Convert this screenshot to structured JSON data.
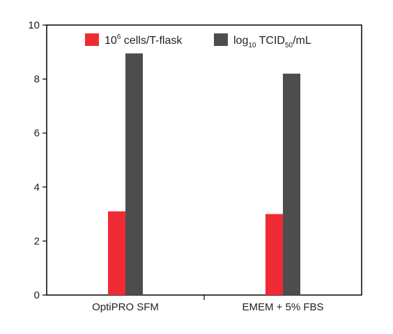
{
  "chart_data": {
    "type": "bar",
    "categories": [
      "OptiPRO SFM",
      "EMEM + 5% FBS"
    ],
    "series": [
      {
        "name": "10^6 cells/T-flask",
        "values": [
          3.1,
          3.0
        ],
        "color": "#ee2b35"
      },
      {
        "name": "log10 TCID50/mL",
        "values": [
          8.95,
          8.2
        ],
        "color": "#4d4d4f"
      }
    ],
    "yticks": [
      0,
      2,
      4,
      6,
      8,
      10
    ],
    "ylim": [
      0,
      10
    ],
    "xlabel": "",
    "ylabel": "",
    "title": "",
    "grid": false,
    "legend_position": "top-center",
    "legend": {
      "entry1": {
        "base": "10",
        "sup": "6",
        "rest": " cells/T-flask"
      },
      "entry2": {
        "base": "log",
        "sub1": "10",
        "mid": " TCID",
        "sub2": "50",
        "rest": "/mL"
      }
    }
  }
}
